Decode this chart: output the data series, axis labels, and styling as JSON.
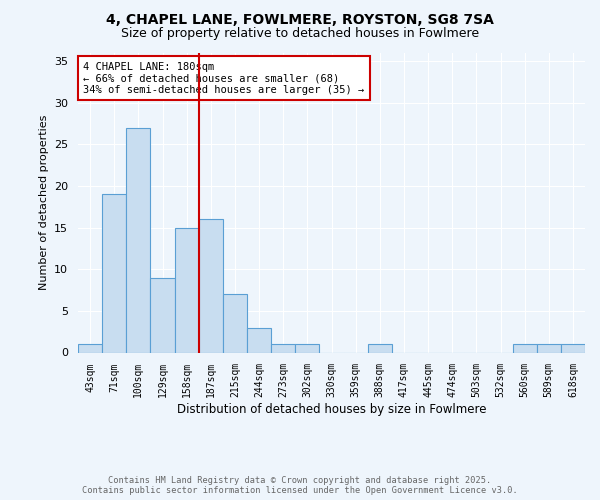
{
  "title": "4, CHAPEL LANE, FOWLMERE, ROYSTON, SG8 7SA",
  "subtitle": "Size of property relative to detached houses in Fowlmere",
  "xlabel": "Distribution of detached houses by size in Fowlmere",
  "ylabel": "Number of detached properties",
  "categories": [
    "43sqm",
    "71sqm",
    "100sqm",
    "129sqm",
    "158sqm",
    "187sqm",
    "215sqm",
    "244sqm",
    "273sqm",
    "302sqm",
    "330sqm",
    "359sqm",
    "388sqm",
    "417sqm",
    "445sqm",
    "474sqm",
    "503sqm",
    "532sqm",
    "560sqm",
    "589sqm",
    "618sqm"
  ],
  "values": [
    1,
    19,
    27,
    9,
    15,
    16,
    7,
    3,
    1,
    1,
    0,
    0,
    1,
    0,
    0,
    0,
    0,
    0,
    1,
    1,
    1
  ],
  "bar_color": "#c8ddf0",
  "bar_edge_color": "#5a9fd4",
  "vline_index": 5,
  "vline_color": "#cc0000",
  "annotation_text": "4 CHAPEL LANE: 180sqm\n← 66% of detached houses are smaller (68)\n34% of semi-detached houses are larger (35) →",
  "annotation_box_color": "#ffffff",
  "annotation_box_edge": "#cc0000",
  "ylim": [
    0,
    36
  ],
  "yticks": [
    0,
    5,
    10,
    15,
    20,
    25,
    30,
    35
  ],
  "footer1": "Contains HM Land Registry data © Crown copyright and database right 2025.",
  "footer2": "Contains public sector information licensed under the Open Government Licence v3.0.",
  "bg_color": "#eef5fc",
  "title_fontsize": 10,
  "subtitle_fontsize": 9,
  "annotation_fontsize": 7.5
}
